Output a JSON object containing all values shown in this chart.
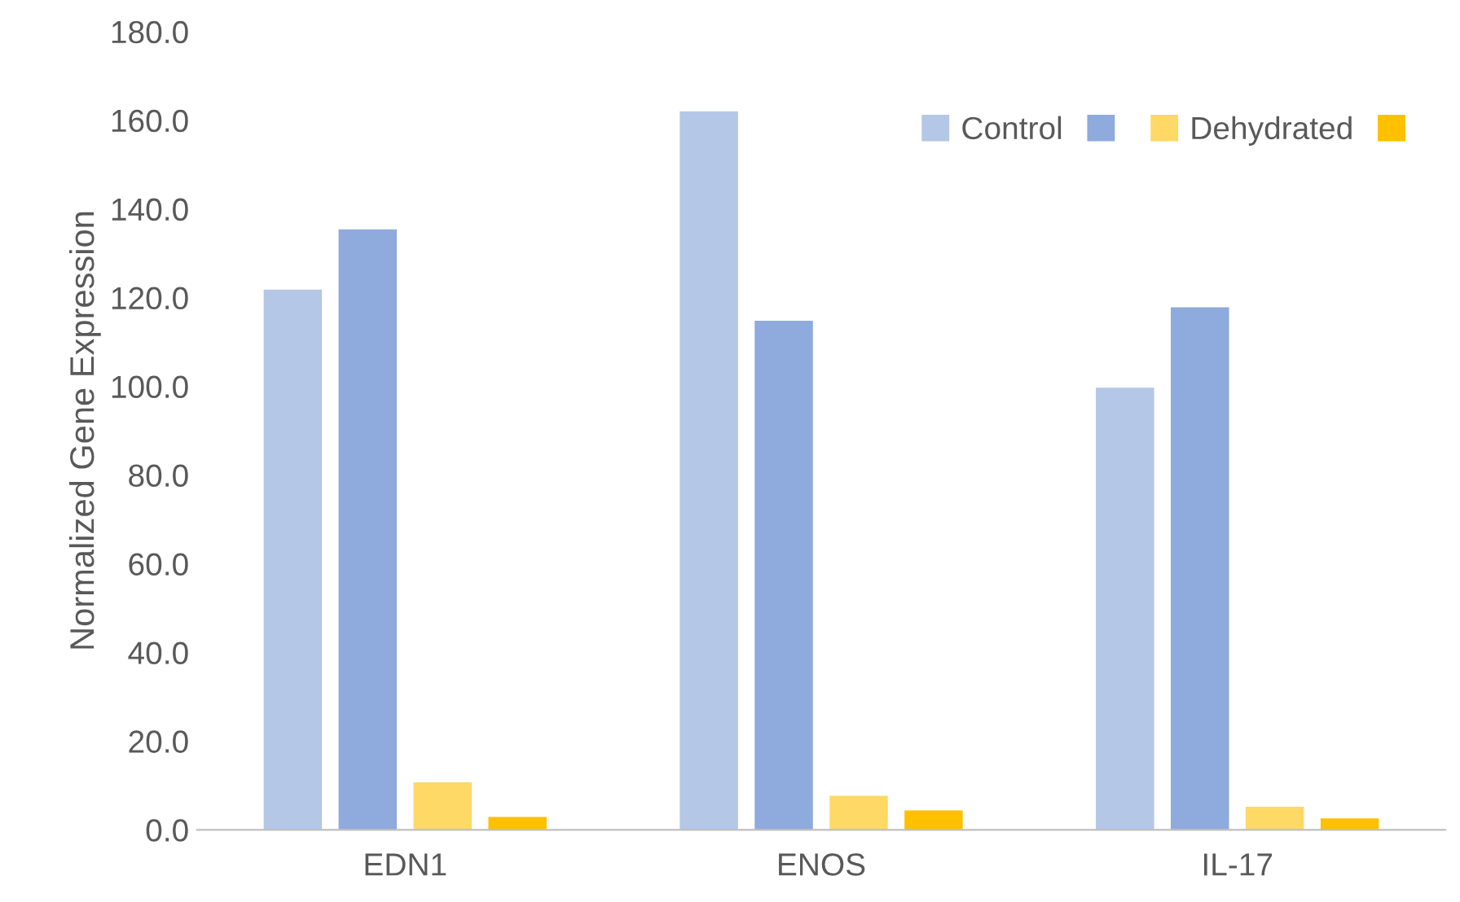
{
  "chart_data": {
    "type": "bar",
    "ylabel": "Normalized Gene Expression",
    "categories": [
      "EDN1",
      "ENOS",
      "IL-17"
    ],
    "series": [
      {
        "name": "Control",
        "color": "#b4c7e7",
        "values": [
          121.8,
          162.0,
          99.7
        ]
      },
      {
        "color": "#8faadc",
        "values": [
          135.4,
          114.8,
          117.8
        ]
      },
      {
        "name": "Dehydrated",
        "color": "#ffd966",
        "values": [
          10.7,
          7.7,
          5.2
        ]
      },
      {
        "color": "#ffc000",
        "values": [
          2.9,
          4.4,
          2.6
        ]
      }
    ],
    "ylim": [
      0,
      180
    ],
    "yticks": [
      {
        "value": 0,
        "label": "0.0"
      },
      {
        "value": 20,
        "label": "20.0"
      },
      {
        "value": 40,
        "label": "40.0"
      },
      {
        "value": 60,
        "label": "60.0"
      },
      {
        "value": 80,
        "label": "80.0"
      },
      {
        "value": 100,
        "label": "100.0"
      },
      {
        "value": 120,
        "label": "120.0"
      },
      {
        "value": 140,
        "label": "140.0"
      },
      {
        "value": 160,
        "label": "160.0"
      },
      {
        "value": 180,
        "label": "180.0"
      }
    ],
    "grid": false,
    "legend": "top right"
  }
}
